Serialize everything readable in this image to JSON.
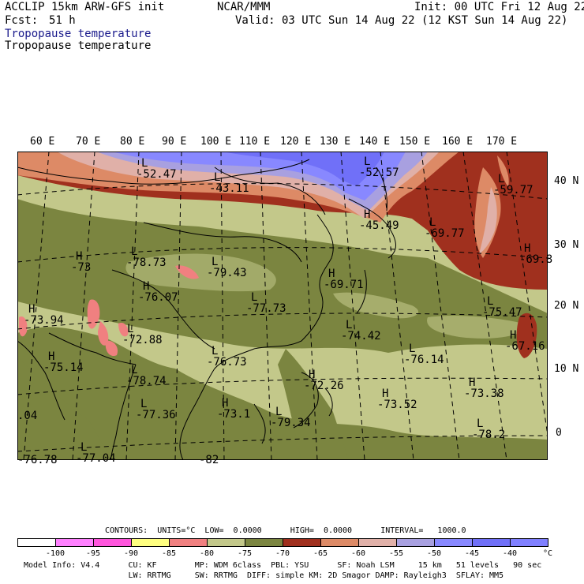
{
  "header": {
    "model": "ACCLIP 15km ARW-GFS init",
    "center": "NCAR/MMM",
    "init": "Init: 00 UTC Fri 12 Aug 22",
    "fcst_label": "Fcst:",
    "fcst_value": "51 h",
    "valid": "Valid: 03 UTC Sun 14 Aug 22 (12 KST Sun 14 Aug 22)",
    "field_title_1": "Tropopause temperature",
    "field_title_2": "Tropopause temperature"
  },
  "map": {
    "lon_labels": [
      "60 E",
      "70 E",
      "80 E",
      "90 E",
      "100 E",
      "110 E",
      "120 E",
      "130 E",
      "140 E",
      "150 E",
      "160 E",
      "170 E"
    ],
    "lat_labels": [
      "40 N",
      "30 N",
      "20 N",
      "10 N",
      "0"
    ],
    "annotations": [
      {
        "mark": "L",
        "value": "-52.47"
      },
      {
        "mark": "L",
        "value": "-43.11"
      },
      {
        "mark": "L",
        "value": "-52.57"
      },
      {
        "mark": "L",
        "value": "-59.77"
      },
      {
        "mark": "H",
        "value": "-45.49"
      },
      {
        "mark": "L",
        "value": "-69.77"
      },
      {
        "mark": "H",
        "value": "-69.8"
      },
      {
        "mark": "L",
        "value": "-78.73"
      },
      {
        "mark": "H",
        "value": "-73"
      },
      {
        "mark": "L",
        "value": "-79.43"
      },
      {
        "mark": "H",
        "value": "-69.71"
      },
      {
        "mark": "H",
        "value": "-76.07"
      },
      {
        "mark": "L",
        "value": "-77.73"
      },
      {
        "mark": "L",
        "value": "-75.47"
      },
      {
        "mark": "H",
        "value": "-73.94"
      },
      {
        "mark": "L",
        "value": "-72.88"
      },
      {
        "mark": "L",
        "value": "-74.42"
      },
      {
        "mark": "H",
        "value": "-67.16"
      },
      {
        "mark": "H",
        "value": "-75.14"
      },
      {
        "mark": "L",
        "value": "-76.73"
      },
      {
        "mark": "L",
        "value": "-76.14"
      },
      {
        "mark": "L",
        "value": "-78.74"
      },
      {
        "mark": "H",
        "value": "-72.26"
      },
      {
        "mark": "H",
        "value": "-73.38"
      },
      {
        "mark": "H",
        "value": "-73.52"
      },
      {
        "mark": "L",
        "value": "-77.36"
      },
      {
        "mark": "H",
        "value": "-73.1"
      },
      {
        "mark": "L",
        "value": "-79.34"
      },
      {
        "mark": "L",
        "value": "-78.2"
      },
      {
        "mark": "",
        "value": ".04"
      },
      {
        "mark": "",
        "value": "-76.78"
      },
      {
        "mark": "L",
        "value": "-77.04"
      },
      {
        "mark": "",
        "value": "-82"
      }
    ]
  },
  "contours": {
    "line": "CONTOURS:  UNITS=°C  LOW=  0.0000      HIGH=  0.0000      INTERVAL=   1000.0"
  },
  "colorbar": {
    "colors": [
      "#ffffff",
      "#ff80ff",
      "#ff55dd",
      "#ffff80",
      "#f08080",
      "#c3c88a",
      "#7b8540",
      "#a0301e",
      "#dd8a66",
      "#e0b0a8",
      "#a8a0e0",
      "#8888ff",
      "#7070f8",
      "#8080ff"
    ],
    "labels": [
      "-100",
      "-95",
      "-90",
      "-85",
      "-80",
      "-75",
      "-70",
      "-65",
      "-60",
      "-55",
      "-50",
      "-45",
      "-40",
      "°C"
    ]
  },
  "footer": {
    "line1": "Model Info: V4.4      CU: KF        MP: WDM 6class  PBL: YSU      SF: Noah LSM     15 km   51 levels   90 sec",
    "line2": "                      LW: RRTMG     SW: RRTMG  DIFF: simple KM: 2D Smagor DAMP: Rayleigh3  SFLAY: MM5"
  }
}
